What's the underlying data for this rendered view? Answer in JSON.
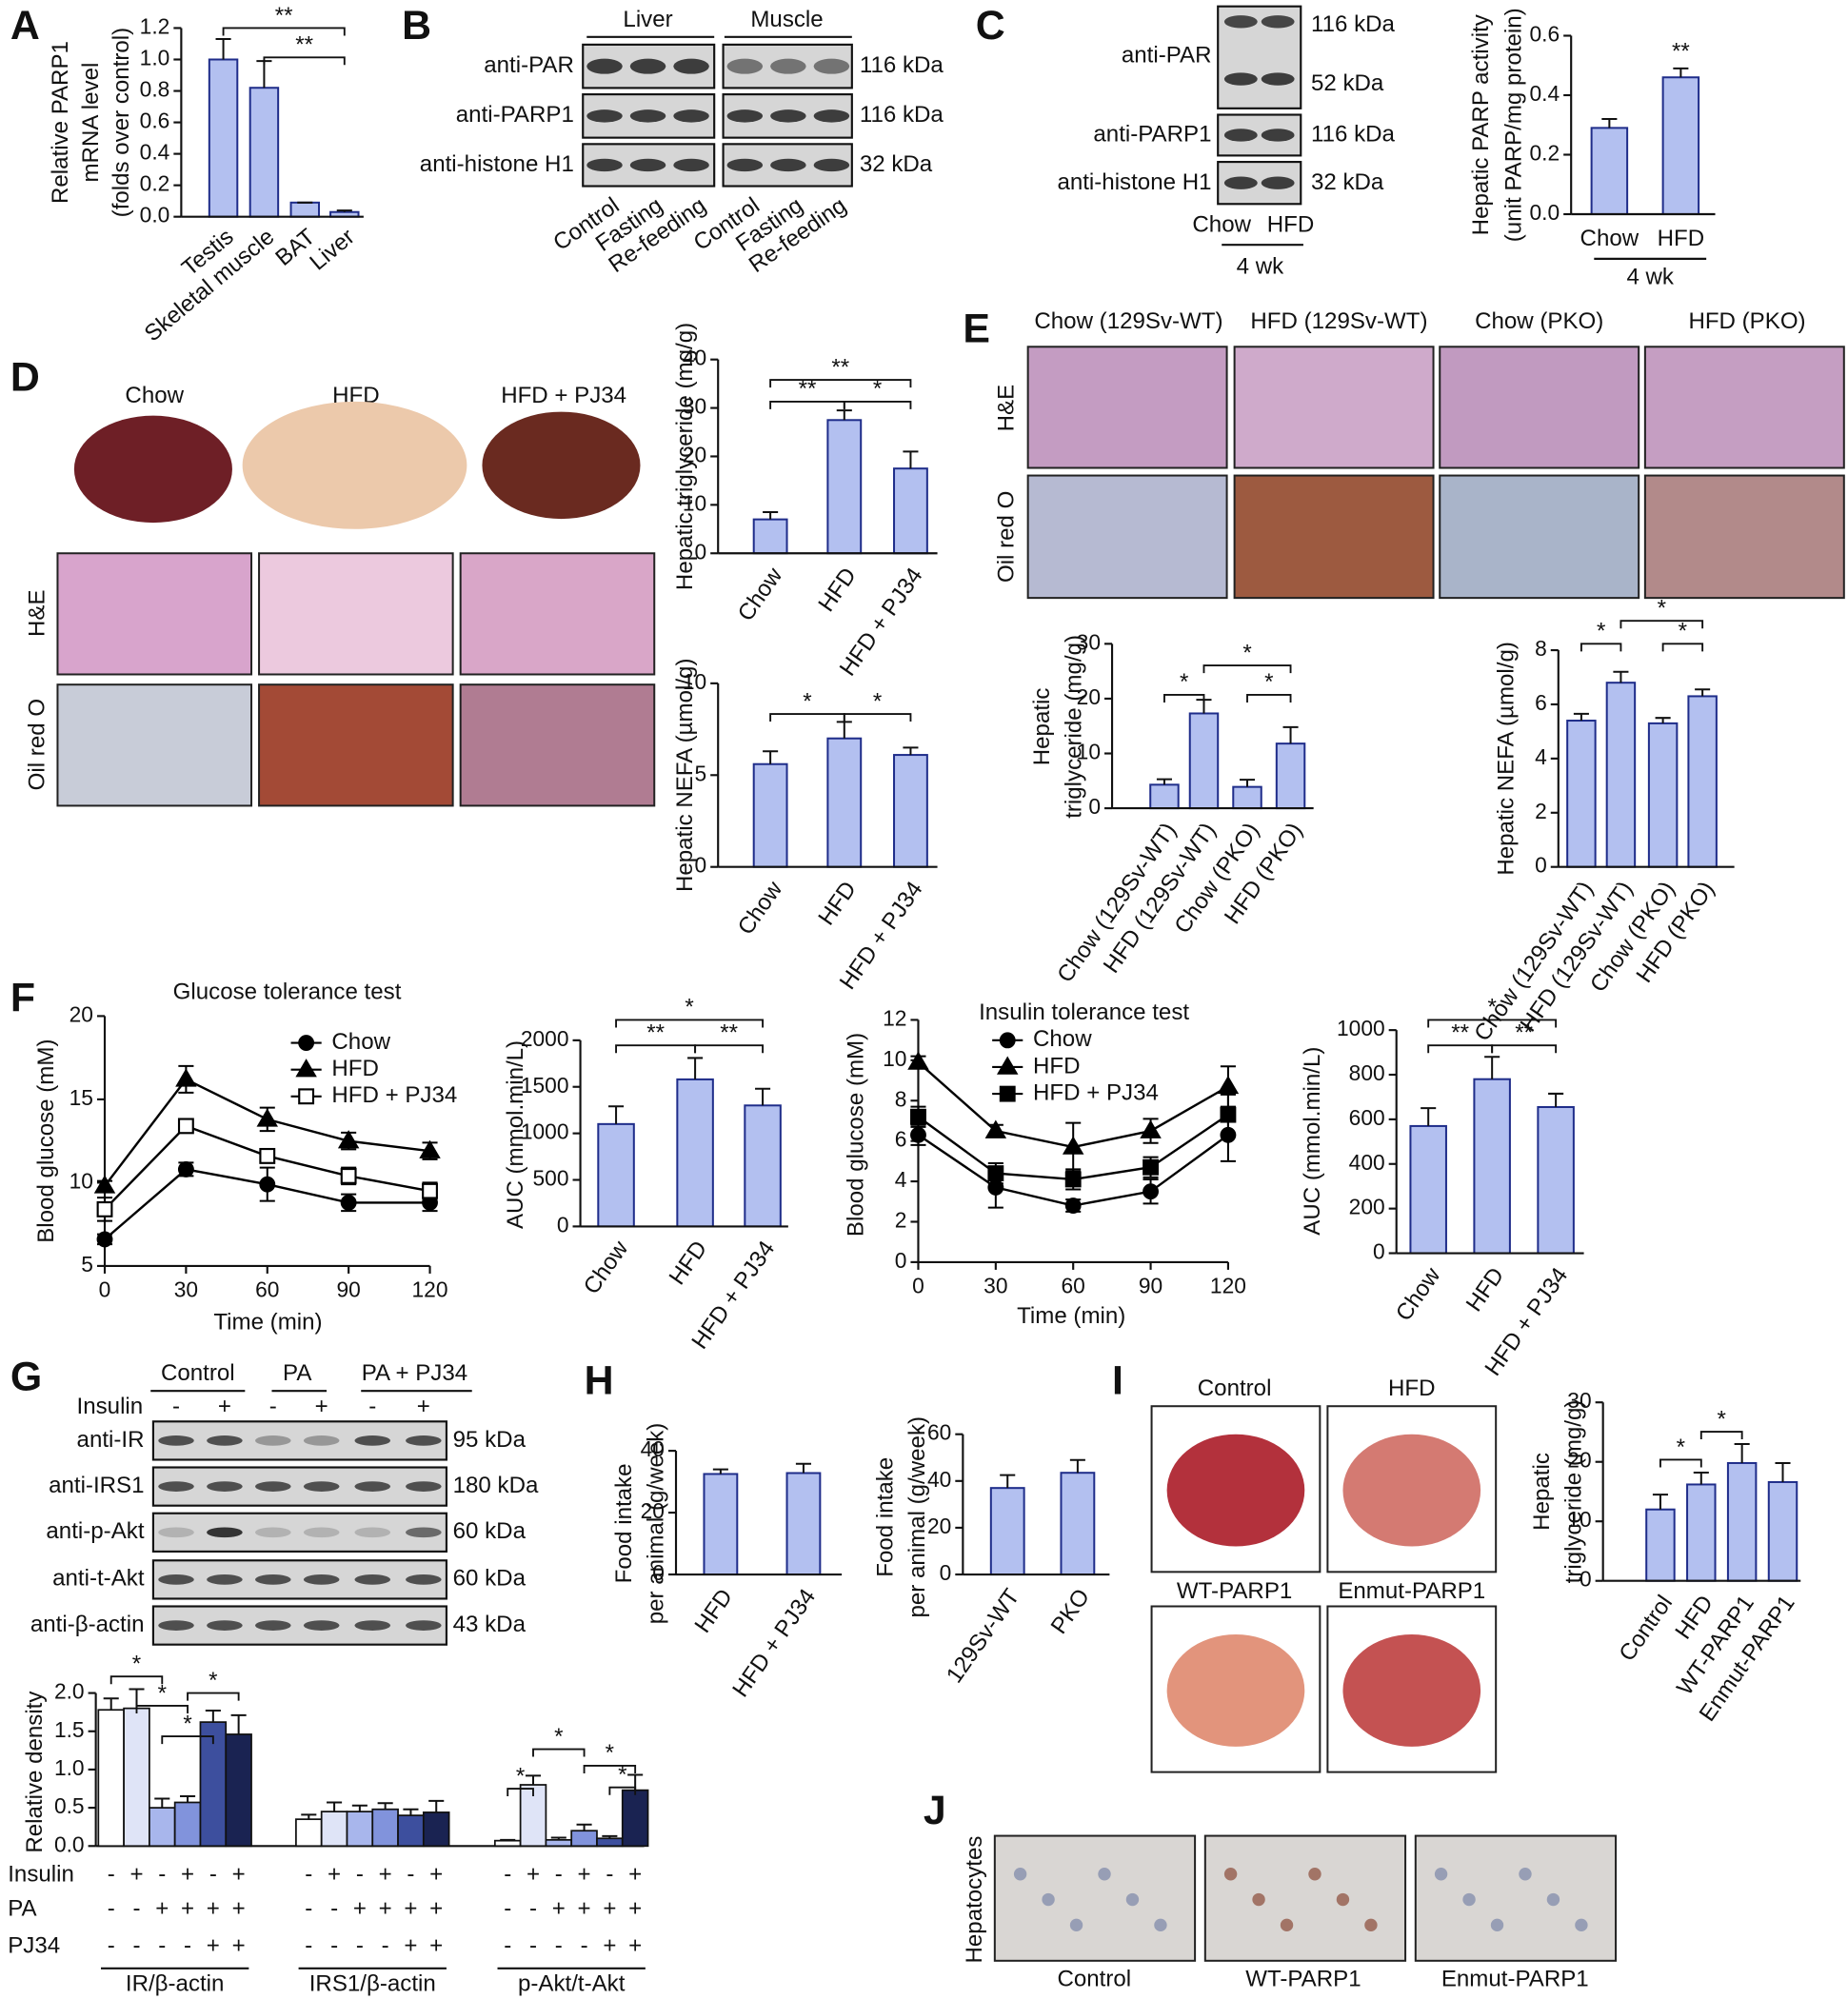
{
  "panels": {
    "letters": [
      "A",
      "B",
      "C",
      "D",
      "E",
      "F",
      "G",
      "H",
      "I",
      "J"
    ]
  },
  "blot_B": {
    "groups": [
      "Liver",
      "Muscle"
    ],
    "rows": [
      {
        "label": "anti-PAR",
        "size": "116 kDa"
      },
      {
        "label": "anti-PARP1",
        "size": "116 kDa"
      },
      {
        "label": "anti-histone H1",
        "size": "32 kDa"
      }
    ],
    "lanes": [
      "Control",
      "Fasting",
      "Re-feeding",
      "Control",
      "Fasting",
      "Re-feeding"
    ]
  },
  "blot_C": {
    "rows": [
      {
        "label": "anti-PAR",
        "sizes": [
          "116 kDa",
          "52 kDa"
        ]
      },
      {
        "label": "anti-PARP1",
        "sizes": [
          "116 kDa"
        ]
      },
      {
        "label": "anti-histone H1",
        "sizes": [
          "32 kDa"
        ]
      }
    ],
    "lanes": [
      "Chow",
      "HFD"
    ],
    "group": "4 wk"
  },
  "blot_G": {
    "groups": [
      "Control",
      "PA",
      "PA + PJ34"
    ],
    "treatment": "Insulin",
    "signs": [
      "-",
      "+",
      "-",
      "+",
      "-",
      "+"
    ],
    "rows": [
      {
        "label": "anti-IR",
        "size": "95 kDa"
      },
      {
        "label": "anti-IRS1",
        "size": "180 kDa"
      },
      {
        "label": "anti-p-Akt",
        "size": "60 kDa"
      },
      {
        "label": "anti-t-Akt",
        "size": "60 kDa"
      },
      {
        "label": "anti-β-actin",
        "size": "43 kDa"
      }
    ]
  },
  "images_D": {
    "columns": [
      "Chow",
      "HFD",
      "HFD + PJ34"
    ],
    "rows": [
      "H&E",
      "Oil red O"
    ]
  },
  "images_E": {
    "columns": [
      "Chow (129Sv-WT)",
      "HFD (129Sv-WT)",
      "Chow (PKO)",
      "HFD (PKO)"
    ],
    "rows": [
      "H&E",
      "Oil red O"
    ]
  },
  "images_I": {
    "labels": [
      "Control",
      "HFD",
      "WT-PARP1",
      "Enmut-PARP1"
    ]
  },
  "images_J": {
    "row_label": "Hepatocytes",
    "labels": [
      "Control",
      "WT-PARP1",
      "Enmut-PARP1"
    ]
  },
  "chart_data": [
    {
      "type": "bar",
      "y_label": [
        "Relative PARP1",
        "mRNA level",
        "(folds over control)"
      ],
      "categories": [
        "Testis",
        "Skeletal muscle",
        "BAT",
        "Liver"
      ],
      "values": [
        1.0,
        0.82,
        0.09,
        0.03
      ],
      "errors": [
        0.13,
        0.17,
        0,
        0.01
      ],
      "color": "#b3c0f0",
      "edge_color": "#1f2d8a",
      "ylim": [
        0,
        1.2
      ],
      "yticks": [
        {
          "value": 0,
          "label": "0.0"
        },
        0.2,
        0.4,
        0.6,
        0.8,
        {
          "value": 1,
          "label": "1.0"
        },
        1.2
      ],
      "significance": [
        "**",
        "**"
      ]
    },
    {
      "type": "bar",
      "y_label": [
        "Hepatic PARP activity",
        "(unit PARP/mg protein)"
      ],
      "categories": [
        "Chow",
        "HFD"
      ],
      "values": [
        0.29,
        0.46
      ],
      "errors": [
        0.03,
        0.03
      ],
      "color": "#b3c0f0",
      "edge_color": "#1f2d8a",
      "ylim": [
        0,
        0.6
      ],
      "yticks": [
        {
          "value": 0,
          "label": "0.0"
        },
        0.2,
        0.4,
        0.6
      ],
      "significance": [
        "**"
      ],
      "group_label": "4 wk"
    },
    {
      "type": "bar",
      "y_label": [
        "Hepatic triglyceride (mg/g)"
      ],
      "categories": [
        "Chow",
        "HFD",
        "HFD + PJ34"
      ],
      "values": [
        7,
        27.5,
        17.5
      ],
      "errors": [
        1.5,
        2,
        3.5
      ],
      "color": "#b3c0f0",
      "edge_color": "#1f2d8a",
      "ylim": [
        0,
        40
      ],
      "yticks": [
        0,
        10,
        20,
        30,
        40
      ],
      "significance": [
        "**",
        "**",
        "*"
      ]
    },
    {
      "type": "bar",
      "y_label": [
        "Hepatic NEFA (µmol/g)"
      ],
      "categories": [
        "Chow",
        "HFD",
        "HFD + PJ34"
      ],
      "values": [
        5.6,
        7.0,
        6.1
      ],
      "errors": [
        0.7,
        0.9,
        0.4
      ],
      "color": "#b3c0f0",
      "edge_color": "#1f2d8a",
      "ylim": [
        0,
        10
      ],
      "yticks": [
        0,
        5,
        10
      ],
      "significance": [
        "*",
        "*"
      ]
    },
    {
      "type": "bar",
      "y_label": [
        "Hepatic",
        "triglyceride (mg/g)"
      ],
      "categories": [
        "Chow (129Sv-WT)",
        "HFD (129Sv-WT)",
        "Chow (PKO)",
        "HFD (PKO)"
      ],
      "values": [
        4.3,
        17.3,
        3.9,
        11.8
      ],
      "errors": [
        1,
        2.5,
        1.3,
        3
      ],
      "color": "#b3c0f0",
      "edge_color": "#1f2d8a",
      "ylim": [
        0,
        30
      ],
      "yticks": [
        0,
        10,
        20,
        30
      ],
      "significance": [
        "*",
        "*",
        "*"
      ]
    },
    {
      "type": "bar",
      "y_label": [
        "Hepatic NEFA (µmol/g)"
      ],
      "categories": [
        "Chow (129Sv-WT)",
        "HFD (129Sv-WT)",
        "Chow (PKO)",
        "HFD (PKO)"
      ],
      "values": [
        5.4,
        6.8,
        5.3,
        6.3
      ],
      "errors": [
        0.25,
        0.4,
        0.2,
        0.25
      ],
      "color": "#b3c0f0",
      "edge_color": "#1f2d8a",
      "ylim": [
        0,
        8
      ],
      "yticks": [
        0,
        2,
        4,
        6,
        8
      ],
      "significance": [
        "*",
        "*",
        "*"
      ]
    },
    {
      "type": "line",
      "title": "Glucose tolerance test",
      "x_label": "Time (min)",
      "y_label": "Blood glucose (mM)",
      "x": [
        0,
        30,
        60,
        90,
        120
      ],
      "xlim": [
        0,
        120
      ],
      "xticks": [
        0,
        30,
        60,
        90,
        120
      ],
      "ylim": [
        5,
        20
      ],
      "yticks": [
        5,
        10,
        15,
        20
      ],
      "series": [
        {
          "name": "Chow",
          "marker": "circle",
          "color": "#000000",
          "values": [
            6.6,
            10.8,
            9.9,
            8.8,
            8.8
          ],
          "errors": [
            0.3,
            0.4,
            1.0,
            0.5,
            0.5
          ]
        },
        {
          "name": "HFD",
          "marker": "triangle",
          "color": "#000000",
          "values": [
            9.8,
            16.2,
            13.8,
            12.5,
            11.9
          ],
          "errors": [
            0.3,
            0.8,
            0.7,
            0.5,
            0.5
          ]
        },
        {
          "name": "HFD + PJ34",
          "marker": "open_square",
          "color": "#000000",
          "values": [
            8.4,
            13.4,
            11.6,
            10.4,
            9.5
          ],
          "errors": [
            0.7,
            0.4,
            0.4,
            0.5,
            0.5
          ]
        }
      ]
    },
    {
      "type": "bar",
      "y_label": [
        "AUC (mmol.min/L)"
      ],
      "categories": [
        "Chow",
        "HFD",
        "HFD + PJ34"
      ],
      "values": [
        1100,
        1580,
        1300
      ],
      "errors": [
        190,
        230,
        180
      ],
      "color": "#b3c0f0",
      "edge_color": "#1f2d8a",
      "ylim": [
        0,
        2000
      ],
      "yticks": [
        0,
        500,
        1000,
        1500,
        2000
      ],
      "significance": [
        "*",
        "**",
        "**"
      ]
    },
    {
      "type": "line",
      "title": "Insulin tolerance test",
      "x_label": "Time (min)",
      "y_label": "Blood glucose (mM)",
      "x": [
        0,
        30,
        60,
        90,
        120
      ],
      "xlim": [
        0,
        120
      ],
      "xticks": [
        0,
        30,
        60,
        90,
        120
      ],
      "ylim": [
        0,
        12
      ],
      "yticks": [
        0,
        2,
        4,
        6,
        8,
        10,
        12
      ],
      "series": [
        {
          "name": "Chow",
          "marker": "circle",
          "color": "#000000",
          "values": [
            6.3,
            3.7,
            2.8,
            3.5,
            6.3
          ],
          "errors": [
            0.5,
            1.0,
            0.3,
            0.6,
            1.3
          ]
        },
        {
          "name": "HFD",
          "marker": "triangle",
          "color": "#000000",
          "values": [
            9.9,
            6.5,
            5.7,
            6.5,
            8.7
          ],
          "errors": [
            0.3,
            0.3,
            1.2,
            0.6,
            1.0
          ]
        },
        {
          "name": "HFD + PJ34",
          "marker": "square",
          "color": "#000000",
          "values": [
            7.2,
            4.4,
            4.1,
            4.7,
            7.3
          ],
          "errors": [
            0.5,
            0.5,
            0.5,
            0.5,
            1.0
          ]
        }
      ]
    },
    {
      "type": "bar",
      "y_label": [
        "AUC (mmol.min/L)"
      ],
      "categories": [
        "Chow",
        "HFD",
        "HFD + PJ34"
      ],
      "values": [
        570,
        780,
        655
      ],
      "errors": [
        80,
        100,
        60
      ],
      "color": "#b3c0f0",
      "edge_color": "#1f2d8a",
      "ylim": [
        0,
        1000
      ],
      "yticks": [
        0,
        200,
        400,
        600,
        800,
        1000
      ],
      "significance": [
        "*",
        "**",
        "**"
      ]
    },
    {
      "type": "grouped_bar",
      "y_label": "Relative density",
      "categories": [
        "IR/β-actin",
        "IRS1/β-actin",
        "p-Akt/t-Akt"
      ],
      "series": [
        {
          "color": "#ffffff",
          "values": [
            1.78,
            0.35,
            0.07
          ],
          "errors": [
            0.15,
            0.06,
            0.01
          ]
        },
        {
          "color": "#dfe4f7",
          "values": [
            1.8,
            0.45,
            0.8
          ],
          "errors": [
            0.25,
            0.12,
            0.12
          ]
        },
        {
          "color": "#a8b6ec",
          "values": [
            0.5,
            0.45,
            0.08
          ],
          "errors": [
            0.12,
            0.08,
            0.03
          ]
        },
        {
          "color": "#8193dc",
          "values": [
            0.57,
            0.48,
            0.2
          ],
          "errors": [
            0.08,
            0.08,
            0.08
          ]
        },
        {
          "color": "#3d4f9e",
          "values": [
            1.62,
            0.4,
            0.1
          ],
          "errors": [
            0.15,
            0.08,
            0.03
          ]
        },
        {
          "color": "#1a2352",
          "values": [
            1.46,
            0.44,
            0.73
          ],
          "errors": [
            0.25,
            0.15,
            0.2
          ]
        }
      ],
      "edge_color": "#111111",
      "ylim": [
        0,
        2
      ],
      "yticks": [
        {
          "value": 0,
          "label": "0.0"
        },
        0.5,
        {
          "value": 1,
          "label": "1.0"
        },
        1.5,
        {
          "value": 2,
          "label": "2.0"
        }
      ],
      "significance": [
        [
          "*",
          "*",
          "*",
          "*"
        ],
        [],
        [
          "*",
          "*",
          "*",
          "*"
        ]
      ],
      "conditions": [
        {
          "label": "Insulin",
          "signs": [
            "-",
            "+",
            "-",
            "+",
            "-",
            "+"
          ]
        },
        {
          "label": "PA",
          "signs": [
            "-",
            "-",
            "+",
            "+",
            "+",
            "+"
          ]
        },
        {
          "label": "PJ34",
          "signs": [
            "-",
            "-",
            "-",
            "-",
            "+",
            "+"
          ]
        }
      ]
    },
    {
      "type": "bar",
      "y_label": [
        "Food intake",
        "per animal (g/week)"
      ],
      "categories": [
        "HFD",
        "HFD + PJ34"
      ],
      "values": [
        32.5,
        32.8
      ],
      "errors": [
        1.5,
        3
      ],
      "color": "#b3c0f0",
      "edge_color": "#1f2d8a",
      "ylim": [
        0,
        40
      ],
      "yticks": [
        0,
        20,
        40
      ]
    },
    {
      "type": "bar",
      "y_label": [
        "Food intake",
        "per animal (g/week)"
      ],
      "categories": [
        "129Sv-WT",
        "PKO"
      ],
      "values": [
        37,
        43.5
      ],
      "errors": [
        5.5,
        5.5
      ],
      "color": "#b3c0f0",
      "edge_color": "#1f2d8a",
      "ylim": [
        0,
        60
      ],
      "yticks": [
        0,
        20,
        40,
        60
      ]
    },
    {
      "type": "bar",
      "y_label": [
        "Hepatic",
        "triglyceride (mg/g)"
      ],
      "categories": [
        "Control",
        "HFD",
        "WT-PARP1",
        "Enmut-PARP1"
      ],
      "values": [
        12,
        16.2,
        19.8,
        16.6
      ],
      "errors": [
        2.5,
        2,
        3.2,
        3.2
      ],
      "color": "#b3c0f0",
      "edge_color": "#1f2d8a",
      "ylim": [
        0,
        30
      ],
      "yticks": [
        0,
        10,
        20,
        30
      ],
      "significance": [
        "*",
        "*"
      ]
    }
  ]
}
